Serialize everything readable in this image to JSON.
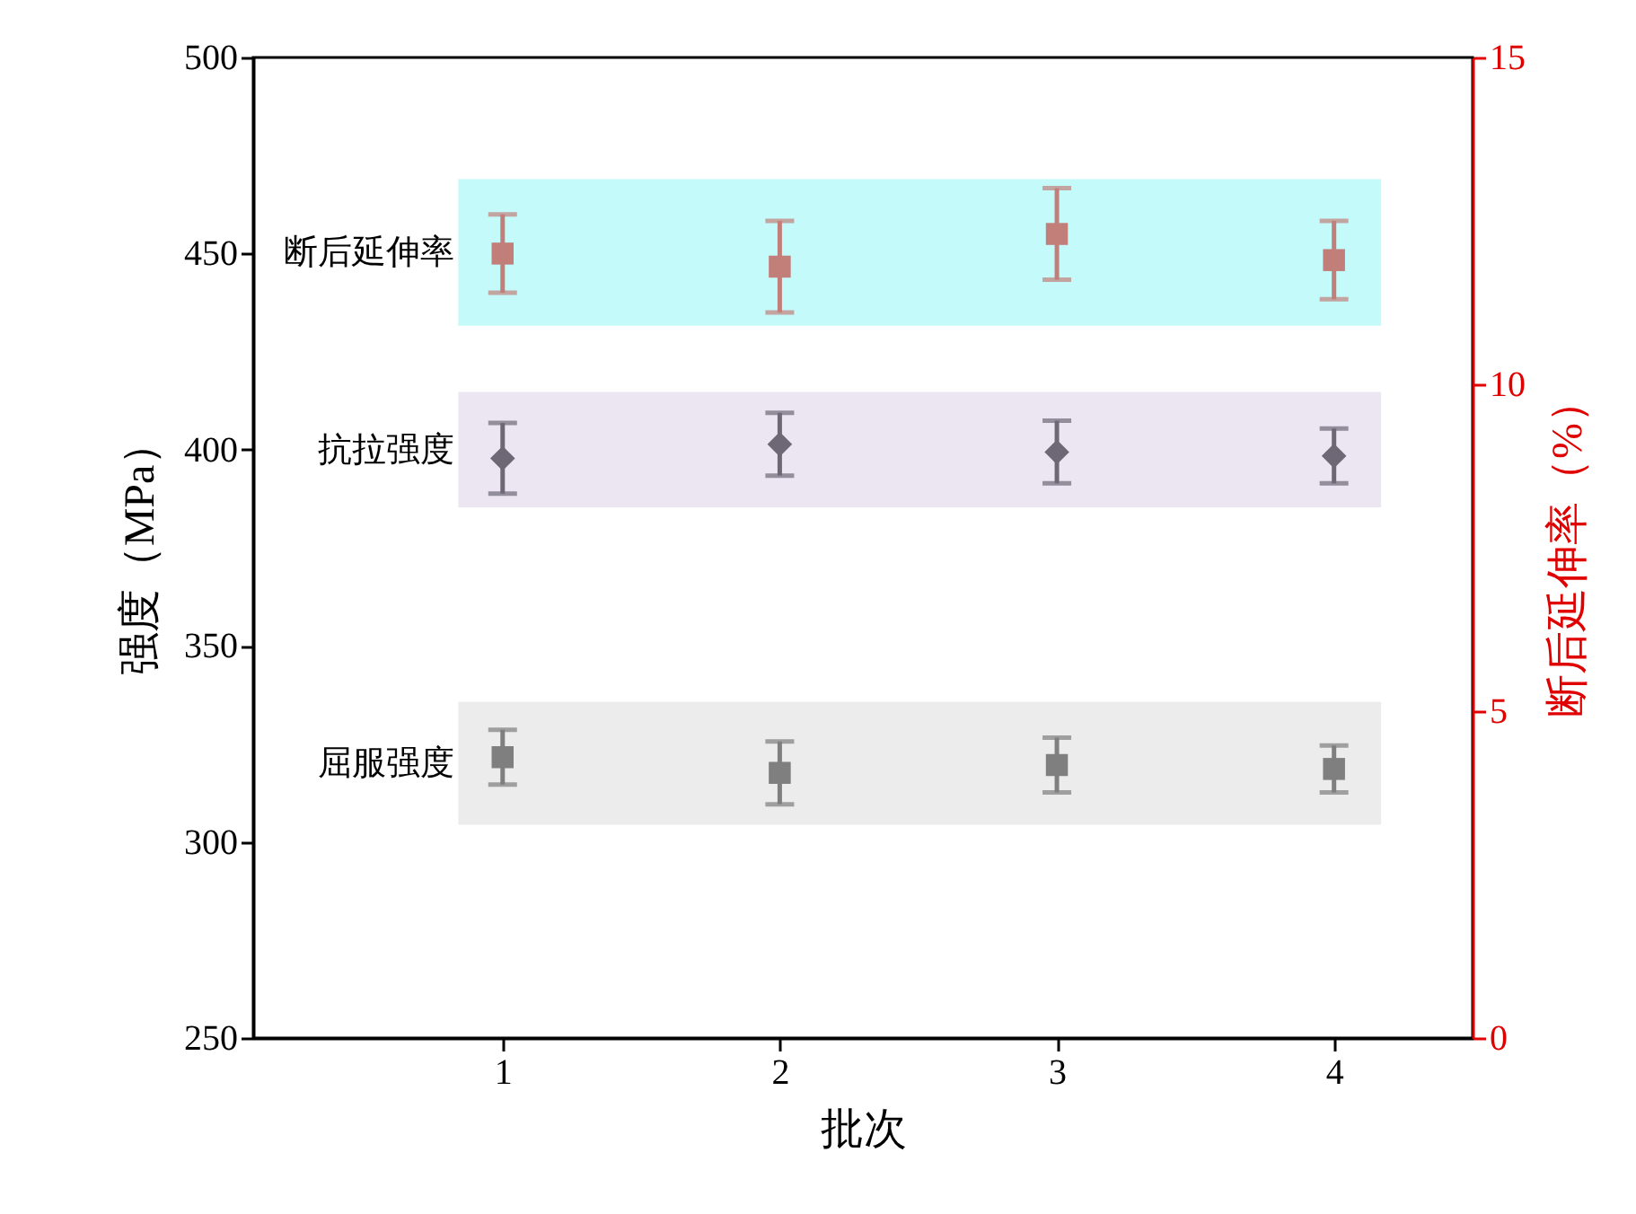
{
  "chart_data": {
    "type": "scatter",
    "xlabel": "批次",
    "ylabel": "强度（MPa）",
    "y2label": "断后延伸率（%）",
    "x": [
      1,
      2,
      3,
      4
    ],
    "xlim": [
      0.1,
      4.5
    ],
    "xticks": [
      1,
      2,
      3,
      4
    ],
    "ylim": [
      250,
      500
    ],
    "yticks": [
      250,
      300,
      350,
      400,
      450,
      500
    ],
    "y2lim": [
      0,
      15
    ],
    "y2ticks": [
      0,
      5,
      10,
      15
    ],
    "series": [
      {
        "color": "#7f7f7f",
        "marker": "square",
        "values": [
          321.6,
          317.6,
          319.6,
          318.6
        ],
        "errors": [
          7,
          8,
          7,
          6
        ]
      },
      {
        "color": "#6e6876",
        "marker": "diamond",
        "values": [
          397.8,
          401.4,
          399.4,
          398.4
        ],
        "errors": [
          9,
          8,
          8,
          7
        ]
      },
      {
        "color": "#c27f7a",
        "marker": "square",
        "axis": "y2",
        "values": [
          12.0,
          11.8,
          12.3,
          11.9
        ],
        "errors": [
          0.6,
          0.7,
          0.7,
          0.6
        ]
      }
    ],
    "bands": [
      {
        "axis": "y",
        "from": 304.4,
        "to": 335.7,
        "label": "屈服强度",
        "color": "#ececec"
      },
      {
        "axis": "y",
        "from": 385.3,
        "to": 414.7,
        "label": "抗拉强度",
        "color": "#ece6f3"
      },
      {
        "axis": "y",
        "from": 431.6,
        "to": 469,
        "label": "断后延伸率",
        "color": "#c4fafa"
      }
    ]
  }
}
